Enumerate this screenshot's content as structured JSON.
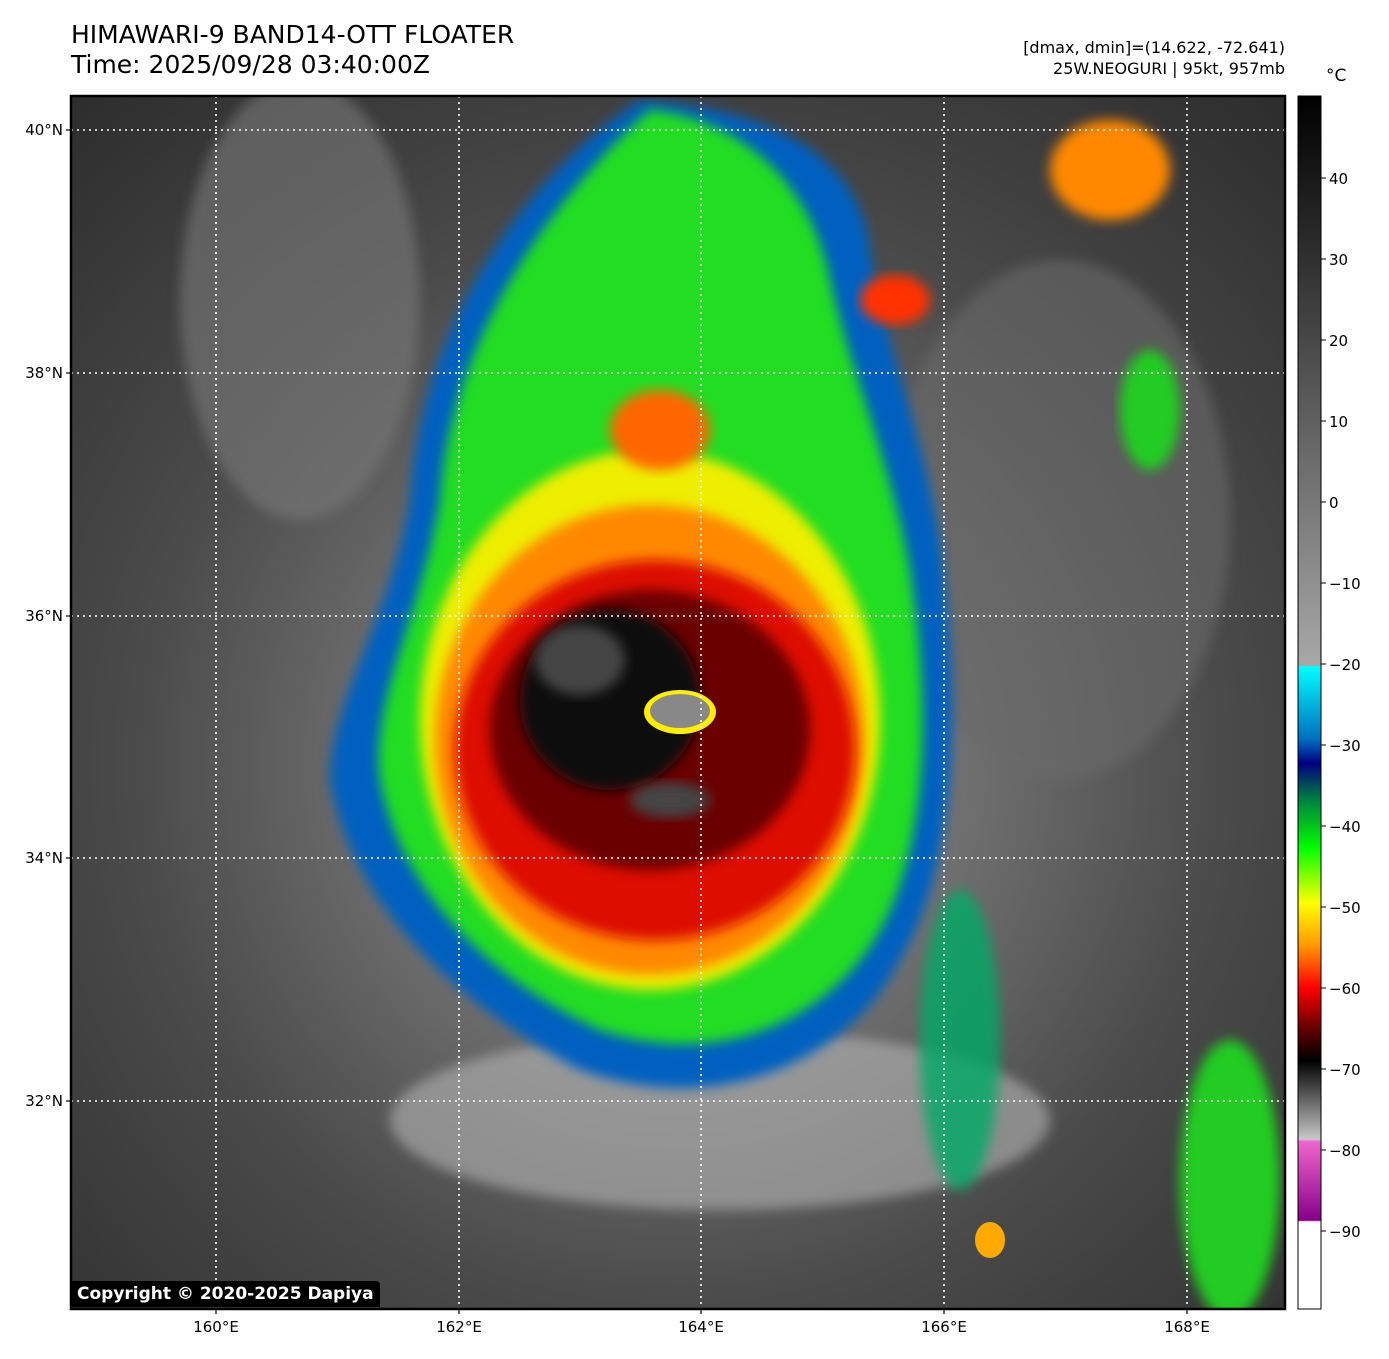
{
  "header": {
    "title": "HIMAWARI-9 BAND14-OTT FLOATER",
    "time": "Time: 2025/09/28 03:40:00Z"
  },
  "info": {
    "range": "[dmax, dmin]=(14.622, -72.641)",
    "storm": "25W.NEOGURI | 95kt, 957mb"
  },
  "colorbar": {
    "unit": "°C",
    "ticks": [
      "40",
      "30",
      "20",
      "10",
      "0",
      "−10",
      "−20",
      "−30",
      "−40",
      "−50",
      "−60",
      "−70",
      "−80",
      "−90"
    ]
  },
  "map": {
    "lat_labels": [
      "40°N",
      "38°N",
      "36°N",
      "34°N",
      "32°N"
    ],
    "lon_labels": [
      "160°E",
      "162°E",
      "164°E",
      "166°E",
      "168°E"
    ]
  },
  "copyright": "Copyright © 2020-2025 Dapiya"
}
